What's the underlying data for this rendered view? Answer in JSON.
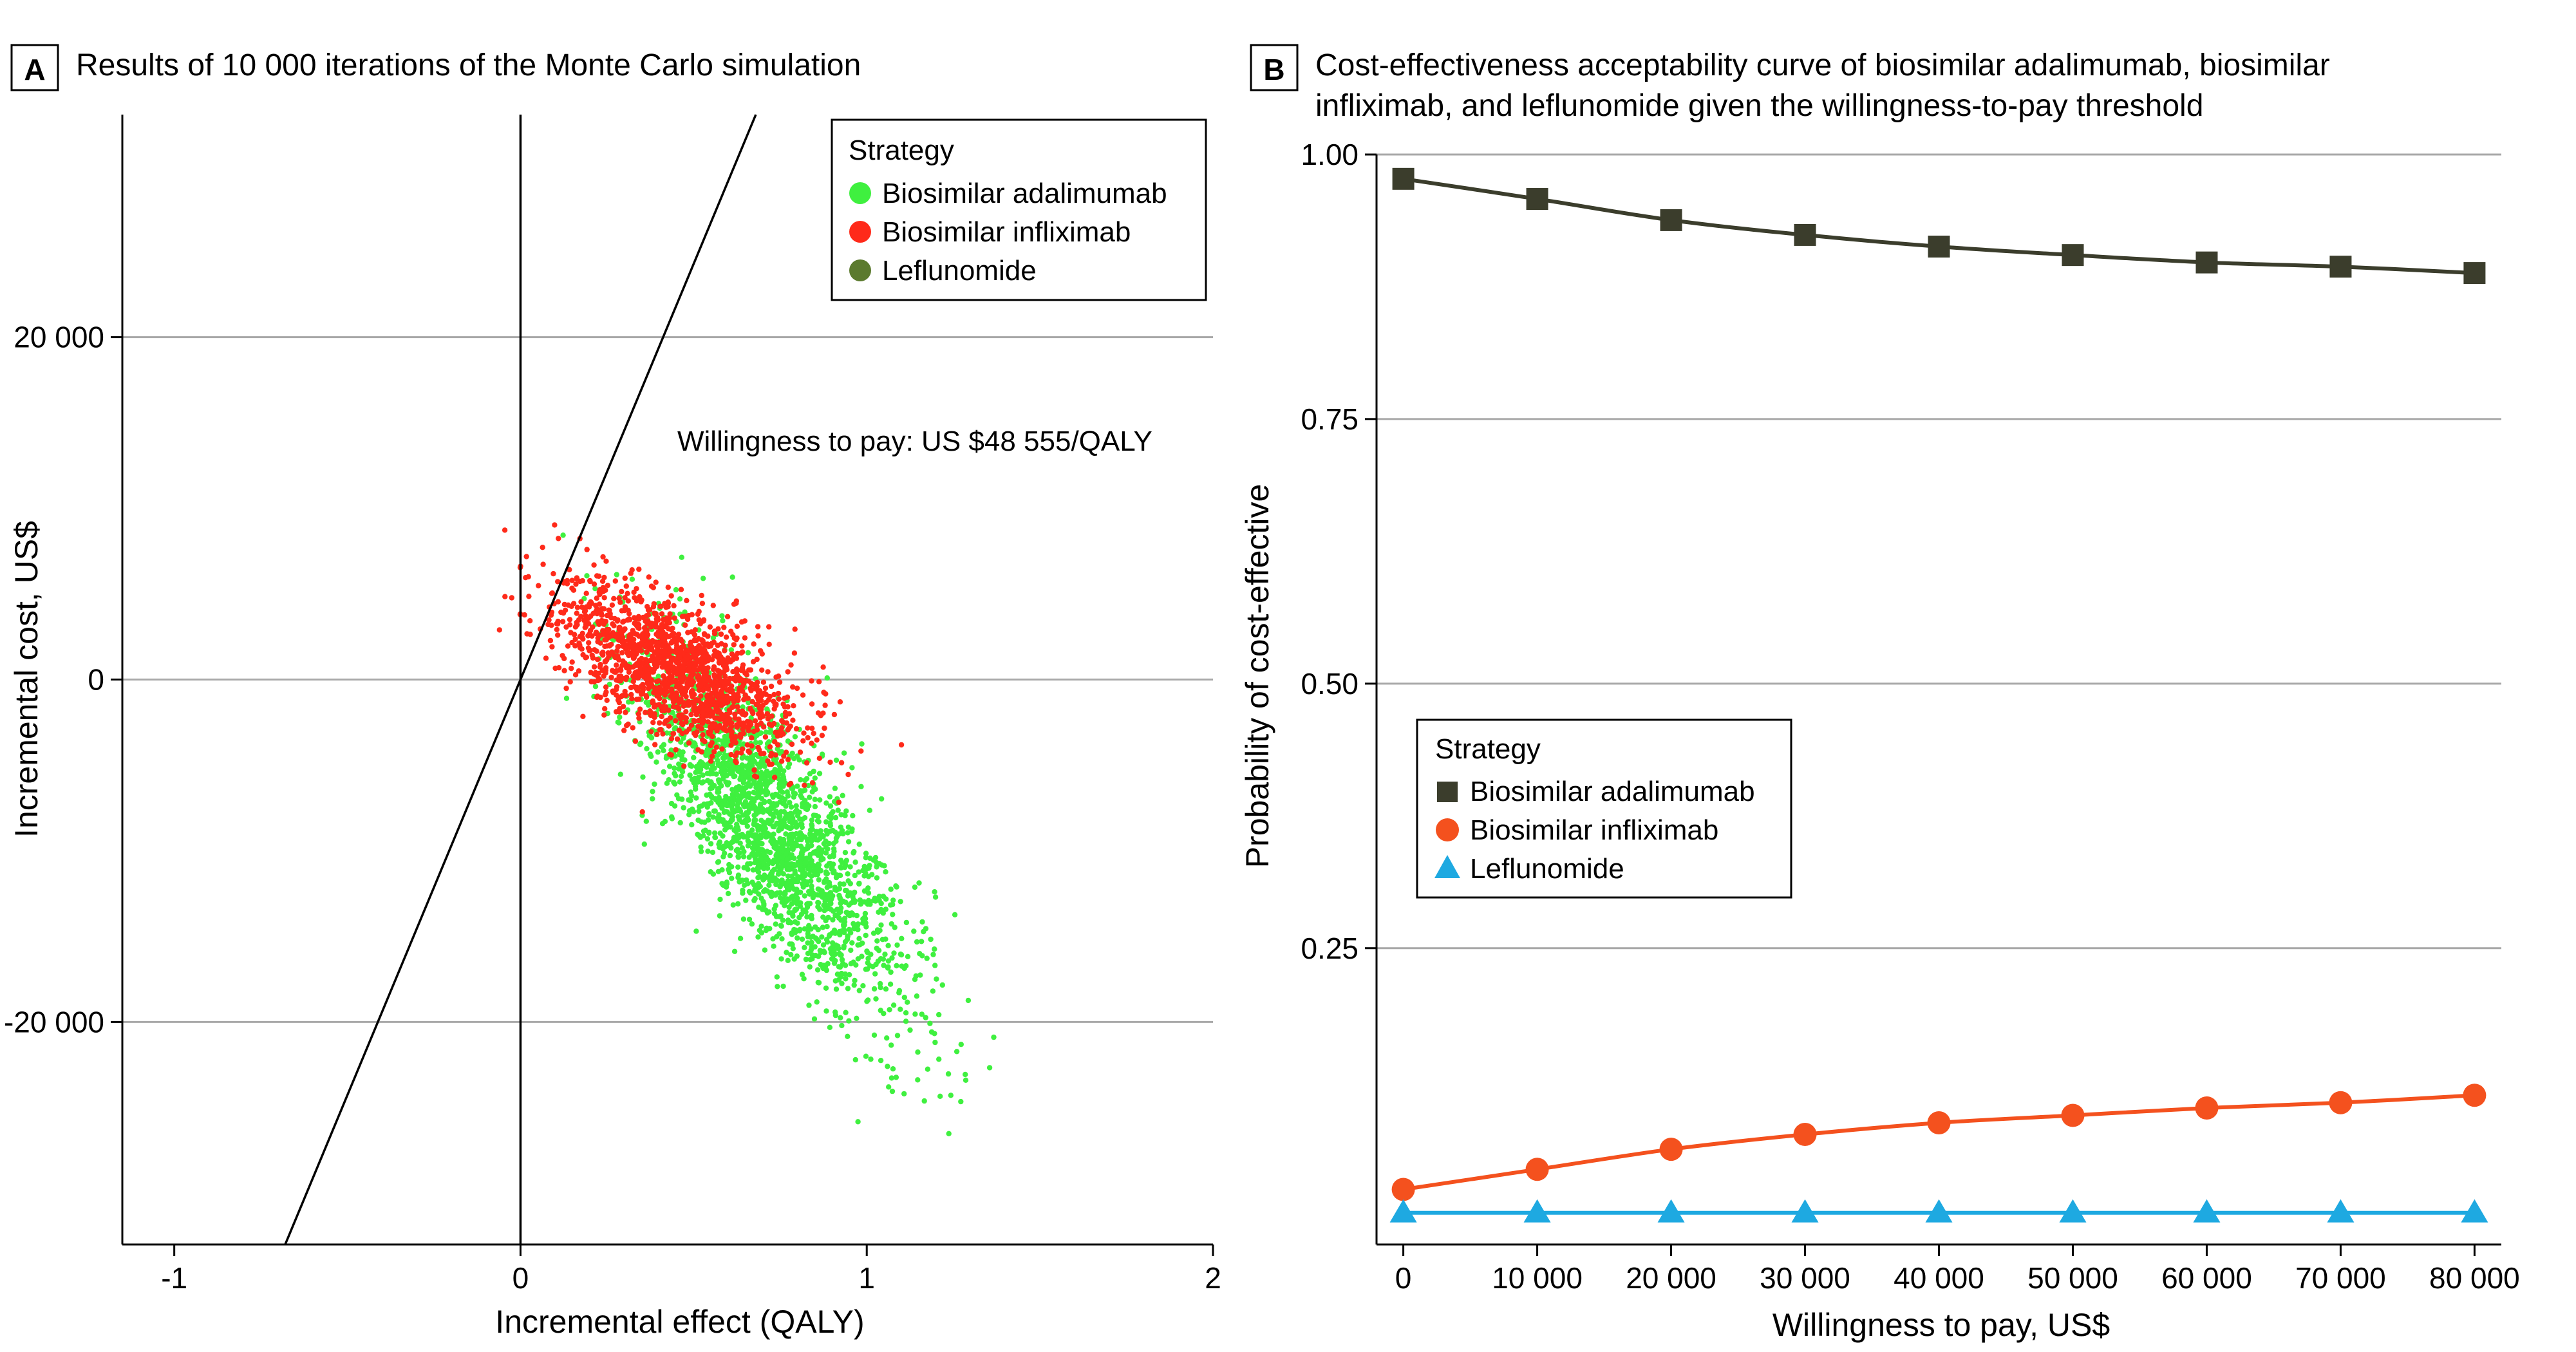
{
  "chart_data": [
    {
      "type": "scatter",
      "panel_label": "A",
      "title": "Results of 10 000 iterations of the Monte Carlo simulation",
      "xlabel": "Incremental effect (QALY)",
      "ylabel": "Incremental cost, US$",
      "xlim": [
        -1.15,
        2.0
      ],
      "ylim": [
        -33000,
        33000
      ],
      "x_ticks": [
        -1,
        0,
        1,
        2
      ],
      "x_tick_labels": [
        "-1",
        "0",
        "1",
        "2"
      ],
      "y_ticks": [
        20000,
        0,
        -20000
      ],
      "y_tick_labels": [
        "20 000",
        "0",
        "-20 000"
      ],
      "grid": "horizontal",
      "wtp_line": {
        "slope": 48555,
        "label": "Willingness to pay: US $48 555/QALY"
      },
      "legend": {
        "title": "Strategy",
        "placement": "top-right",
        "entries": [
          "Biosimilar adalimumab",
          "Biosimilar infliximab",
          "Leflunomide"
        ]
      },
      "series": [
        {
          "name": "Biosimilar adalimumab",
          "color": "#3ff03f",
          "center": [
            0.72,
            -8500
          ],
          "n_points": 2200
        },
        {
          "name": "Biosimilar infliximab",
          "color": "#ff2a1a",
          "center": [
            0.45,
            500
          ],
          "n_points": 1600
        },
        {
          "name": "Leflunomide",
          "color": "#5b7a2e",
          "center": [
            0,
            0
          ],
          "n_points": 0
        }
      ]
    },
    {
      "type": "line",
      "panel_label": "B",
      "title_lines": [
        "Cost-effectiveness acceptability curve of biosimilar adalimumab, biosimilar",
        "infliximab, and leflunomide given the willingness-to-pay threshold"
      ],
      "xlabel": "Willingness to pay, US$",
      "ylabel": "Probability of cost-effective",
      "xlim": [
        -2000,
        82000
      ],
      "ylim": [
        -0.03,
        1.0
      ],
      "x": [
        0,
        10000,
        20000,
        30000,
        40000,
        50000,
        60000,
        70000,
        80000
      ],
      "x_tick_labels": [
        "0",
        "10 000",
        "20 000",
        "30 000",
        "40 000",
        "50 000",
        "60 000",
        "70 000",
        "80 000"
      ],
      "y_ticks": [
        1.0,
        0.75,
        0.5,
        0.25
      ],
      "y_tick_labels": [
        "1.00",
        "0.75",
        "0.50",
        "0.25"
      ],
      "grid": "horizontal",
      "legend": {
        "title": "Strategy",
        "placement": "center-left",
        "entries": [
          "Biosimilar adalimumab",
          "Biosimilar infliximab",
          "Leflunomide"
        ]
      },
      "series": [
        {
          "name": "Biosimilar adalimumab",
          "marker": "square",
          "color": "#3b3d2c",
          "values": [
            0.977,
            0.958,
            0.938,
            0.924,
            0.913,
            0.905,
            0.898,
            0.894,
            0.888
          ]
        },
        {
          "name": "Biosimilar infliximab",
          "marker": "circle",
          "color": "#f4511e",
          "values": [
            0.022,
            0.041,
            0.06,
            0.074,
            0.085,
            0.092,
            0.099,
            0.104,
            0.111
          ]
        },
        {
          "name": "Leflunomide",
          "marker": "triangle",
          "color": "#1ea9e1",
          "values": [
            0.0,
            0.0,
            0.0,
            0.0,
            0.0,
            0.0,
            0.0,
            0.0,
            0.0
          ]
        }
      ]
    }
  ]
}
